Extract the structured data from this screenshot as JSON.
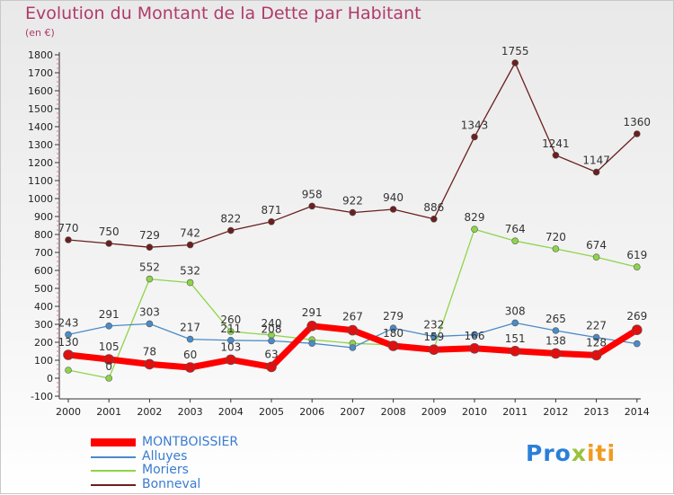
{
  "title": "Evolution du Montant de la Dette par Habitant",
  "subtitle": "(en €)",
  "logo": {
    "part1": "Pro",
    "part2": "x",
    "part3": "iti"
  },
  "chart_data": {
    "type": "line",
    "title": "Evolution du Montant de la Dette par Habitant",
    "unit": "(en €)",
    "x": [
      "2000",
      "2001",
      "2002",
      "2003",
      "2004",
      "2005",
      "2006",
      "2007",
      "2008",
      "2009",
      "2010",
      "2011",
      "2012",
      "2013",
      "2014"
    ],
    "y_ticks": [
      "-100",
      "0",
      "100",
      "200",
      "300",
      "400",
      "500",
      "600",
      "700",
      "800",
      "900",
      "1000",
      "1100",
      "1200",
      "1300",
      "1400",
      "1500",
      "1600",
      "1700",
      "1800"
    ],
    "ylim": [
      -100,
      1800
    ],
    "grid": false,
    "legend_position": "bottom",
    "series": [
      {
        "name": "Bonneval",
        "color": "#6b1f1f",
        "width": 1.3,
        "values": [
          770,
          750,
          729,
          742,
          822,
          871,
          958,
          922,
          940,
          886,
          1343,
          1755,
          1241,
          1147,
          1360
        ],
        "labels": [
          "770",
          "750",
          "729",
          "742",
          "822",
          "871",
          "958",
          "922",
          "940",
          "886",
          "1343",
          "1755",
          "1241",
          "1147",
          "1360"
        ]
      },
      {
        "name": "Moriers",
        "color": "#8ed44a",
        "width": 1.3,
        "values": [
          45,
          0,
          552,
          532,
          260,
          240,
          214,
          194,
          185,
          162,
          829,
          764,
          720,
          674,
          619
        ],
        "labels": [
          "",
          "0",
          "552",
          "532",
          "260",
          "240",
          "",
          "",
          "",
          "",
          "829",
          "764",
          "720",
          "674",
          "619"
        ]
      },
      {
        "name": "Alluyes",
        "color": "#4a8bc8",
        "width": 1.3,
        "values": [
          243,
          291,
          303,
          217,
          211,
          208,
          194,
          170,
          279,
          232,
          242,
          308,
          265,
          227,
          192
        ],
        "labels": [
          "243",
          "291",
          "303",
          "217",
          "211",
          "208",
          "",
          "",
          "279",
          "232",
          "",
          "308",
          "265",
          "227",
          ""
        ]
      },
      {
        "name": "MONTBOISSIER",
        "color": "#ff0000",
        "width": 7,
        "values": [
          130,
          105,
          78,
          60,
          103,
          63,
          291,
          267,
          180,
          159,
          166,
          151,
          138,
          128,
          269
        ],
        "labels": [
          "130",
          "105",
          "78",
          "60",
          "103",
          "63",
          "291",
          "267",
          "180",
          "159",
          "166",
          "151",
          "138",
          "128",
          "269"
        ]
      }
    ],
    "legend": [
      {
        "name": "MONTBOISSIER",
        "color": "#ff0000"
      },
      {
        "name": "Alluyes",
        "color": "#4a8bc8"
      },
      {
        "name": "Moriers",
        "color": "#8ed44a"
      },
      {
        "name": "Bonneval",
        "color": "#6b1f1f"
      }
    ]
  }
}
